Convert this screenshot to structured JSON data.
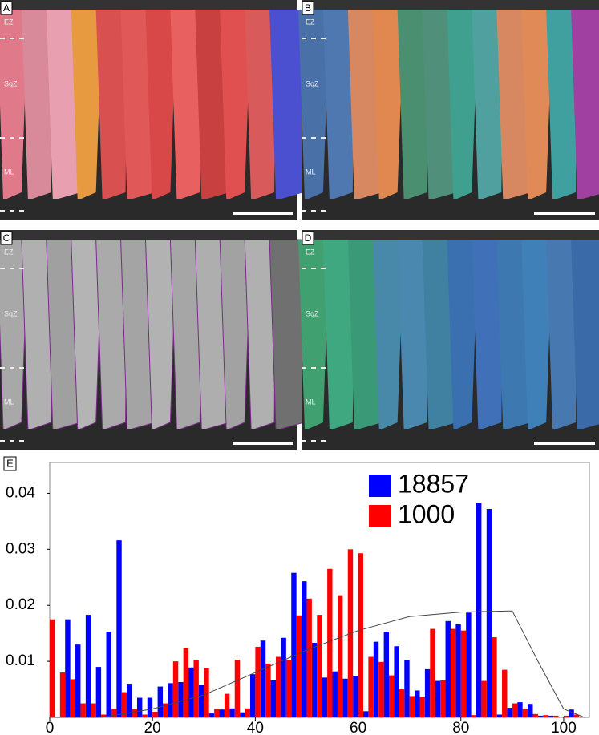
{
  "panels": [
    {
      "label": "A",
      "zones": [
        "EZ",
        "SqZ",
        "ML"
      ]
    },
    {
      "label": "B",
      "zones": [
        "EZ",
        "SqZ",
        "ML"
      ]
    },
    {
      "label": "C",
      "zones": [
        "EZ",
        "SqZ",
        "ML"
      ]
    },
    {
      "label": "D",
      "zones": [
        "EZ",
        "SqZ",
        "ML"
      ]
    }
  ],
  "chart_data": {
    "type": "histogram",
    "label": "E",
    "bins": [
      0,
      2,
      4,
      6,
      8,
      10,
      12,
      14,
      16,
      18,
      20,
      22,
      24,
      26,
      28,
      30,
      32,
      34,
      36,
      38,
      40,
      42,
      44,
      46,
      48,
      50,
      52,
      54,
      56,
      58,
      60,
      62,
      64,
      66,
      68,
      70,
      72,
      74,
      76,
      78,
      80,
      82,
      84,
      86,
      88,
      90,
      92,
      94,
      96,
      98,
      100,
      102,
      104
    ],
    "series": [
      {
        "name": "18857",
        "color": "#0000ff",
        "values": [
          0,
          0.0175,
          0.013,
          0.0183,
          0.009,
          0.0153,
          0.0316,
          0.006,
          0.0035,
          0.0035,
          0.0055,
          0.0061,
          0.0063,
          0.0089,
          0.0058,
          0.0007,
          0.0014,
          0.0016,
          0.0009,
          0.0077,
          0.0137,
          0.0066,
          0.0142,
          0.0258,
          0.0243,
          0.0133,
          0.0071,
          0.0082,
          0.0069,
          0.0074,
          0.0011,
          0.0135,
          0.0153,
          0.0127,
          0.0103,
          0.0048,
          0.0086,
          0.0065,
          0.0172,
          0.0166,
          0.0187,
          0.0383,
          0.0372,
          0.0005,
          0.0017,
          0.0027,
          0.0024,
          0.0003,
          0.0003,
          0,
          0.0014,
          0
        ]
      },
      {
        "name": "1000",
        "color": "#ff0000",
        "values": [
          0.0175,
          0.008,
          0.0068,
          0.0025,
          0.0025,
          0.0005,
          0.0015,
          0.0045,
          0.0015,
          0.0005,
          0.001,
          0.0025,
          0.01,
          0.0124,
          0.0103,
          0.0088,
          0.0015,
          0.0042,
          0.0103,
          0.0016,
          0.0126,
          0.0096,
          0.0108,
          0.0103,
          0.0182,
          0.0212,
          0.0183,
          0.0265,
          0.0218,
          0.03,
          0.0293,
          0.0108,
          0.0099,
          0.0075,
          0.005,
          0.0038,
          0.0036,
          0.0158,
          0.0066,
          0.0158,
          0.0155,
          0.0004,
          0.0065,
          0.0143,
          0.0085,
          0.0025,
          0.0015,
          0.0006,
          0.0004,
          0.0003,
          0.0003,
          0.0005
        ]
      }
    ],
    "curve": {
      "color": "#444444",
      "x": [
        0,
        10,
        20,
        30,
        40,
        50,
        60,
        70,
        80,
        90,
        95,
        100,
        104
      ],
      "values": [
        0,
        0,
        0.0015,
        0.004,
        0.008,
        0.012,
        0.0155,
        0.018,
        0.0188,
        0.019,
        0.01,
        0.0015,
        0
      ]
    },
    "xlim": [
      0,
      105
    ],
    "xticks": [
      0,
      20,
      40,
      60,
      80,
      100
    ],
    "ylim": [
      0,
      0.0455
    ],
    "yticks": [
      0.01,
      0.02,
      0.03,
      0.04
    ]
  }
}
